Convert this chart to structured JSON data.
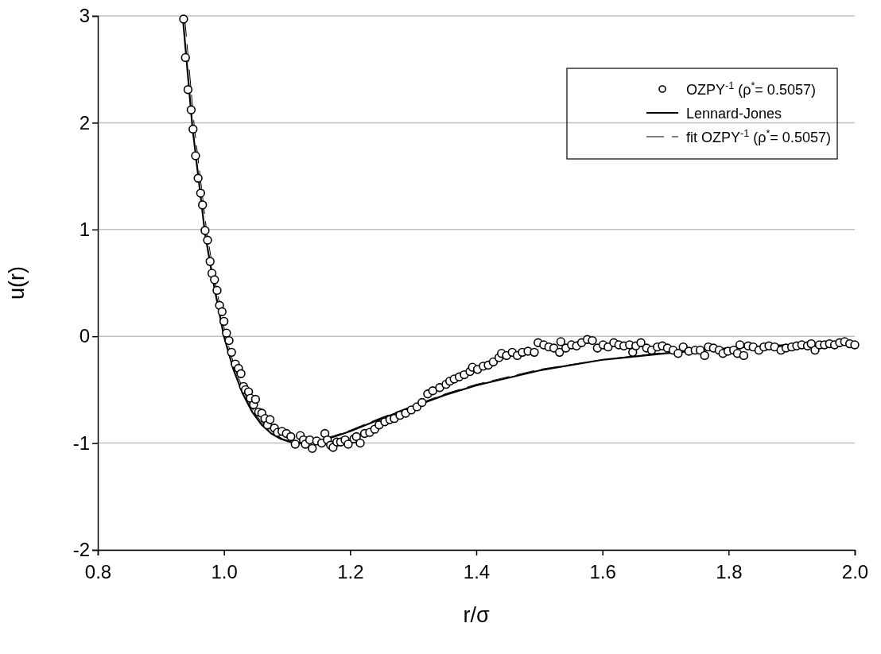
{
  "chart_data": {
    "type": "scatter",
    "xlabel": "r/σ",
    "ylabel": "u(r)",
    "xlim": [
      0.8,
      2.0
    ],
    "ylim": [
      -2,
      3
    ],
    "xticks": [
      0.8,
      {
        "value": 1,
        "label": "1.0"
      },
      1.2,
      1.4,
      1.6,
      1.8,
      {
        "value": 2,
        "label": "2.0"
      }
    ],
    "yticks": [
      -2,
      -1,
      0,
      1,
      2,
      3
    ],
    "grid": "y",
    "legend": "top right",
    "series": [
      {
        "name": "OZPY$^{-1}$ (ρ$^{*}$= 0.5057)",
        "marker": "circle",
        "color": "#000000",
        "x": [
          0.936,
          0.939,
          0.943,
          0.948,
          0.951,
          0.955,
          0.959,
          0.963,
          0.966,
          0.97,
          0.974,
          0.978,
          0.981,
          0.985,
          0.989,
          0.993,
          0.997,
          1.0,
          1.004,
          1.008,
          1.012,
          1.018,
          1.023,
          1.027,
          1.031,
          1.034,
          1.039,
          1.042,
          1.047,
          1.05,
          1.055,
          1.06,
          1.065,
          1.069,
          1.073,
          1.08,
          1.085,
          1.092,
          1.099,
          1.106,
          1.113,
          1.121,
          1.126,
          1.129,
          1.136,
          1.14,
          1.147,
          1.155,
          1.16,
          1.164,
          1.169,
          1.173,
          1.179,
          1.185,
          1.192,
          1.197,
          1.206,
          1.21,
          1.216,
          1.223,
          1.231,
          1.239,
          1.246,
          1.255,
          1.263,
          1.27,
          1.279,
          1.288,
          1.297,
          1.306,
          1.314,
          1.323,
          1.331,
          1.342,
          1.352,
          1.358,
          1.365,
          1.373,
          1.381,
          1.39,
          1.394,
          1.402,
          1.411,
          1.419,
          1.427,
          1.436,
          1.44,
          1.448,
          1.457,
          1.465,
          1.473,
          1.482,
          1.492,
          1.498,
          1.507,
          1.515,
          1.523,
          1.532,
          1.534,
          1.542,
          1.551,
          1.559,
          1.567,
          1.576,
          1.584,
          1.592,
          1.601,
          1.609,
          1.618,
          1.626,
          1.634,
          1.643,
          1.648,
          1.653,
          1.661,
          1.67,
          1.678,
          1.687,
          1.695,
          1.703,
          1.712,
          1.72,
          1.728,
          1.737,
          1.747,
          1.755,
          1.762,
          1.768,
          1.776,
          1.785,
          1.791,
          1.799,
          1.808,
          1.814,
          1.818,
          1.824,
          1.831,
          1.839,
          1.848,
          1.856,
          1.864,
          1.873,
          1.883,
          1.891,
          1.9,
          1.908,
          1.916,
          1.925,
          1.931,
          1.937,
          1.944,
          1.952,
          1.96,
          1.968,
          1.976,
          1.984,
          1.992,
          2.0
        ],
        "values": [
          2.97,
          2.61,
          2.31,
          2.12,
          1.94,
          1.69,
          1.48,
          1.34,
          1.23,
          0.99,
          0.9,
          0.7,
          0.59,
          0.53,
          0.43,
          0.29,
          0.23,
          0.14,
          0.03,
          -0.04,
          -0.15,
          -0.26,
          -0.3,
          -0.35,
          -0.47,
          -0.5,
          -0.52,
          -0.58,
          -0.64,
          -0.59,
          -0.71,
          -0.72,
          -0.77,
          -0.83,
          -0.78,
          -0.86,
          -0.9,
          -0.89,
          -0.91,
          -0.94,
          -1.01,
          -0.93,
          -0.97,
          -1.01,
          -0.97,
          -1.05,
          -0.98,
          -1.0,
          -0.91,
          -0.97,
          -1.02,
          -1.04,
          -0.99,
          -0.99,
          -0.97,
          -1.01,
          -0.96,
          -0.94,
          -1.0,
          -0.91,
          -0.9,
          -0.87,
          -0.83,
          -0.8,
          -0.78,
          -0.77,
          -0.74,
          -0.72,
          -0.69,
          -0.66,
          -0.62,
          -0.54,
          -0.51,
          -0.48,
          -0.45,
          -0.42,
          -0.4,
          -0.38,
          -0.36,
          -0.33,
          -0.29,
          -0.31,
          -0.28,
          -0.27,
          -0.24,
          -0.2,
          -0.16,
          -0.18,
          -0.15,
          -0.18,
          -0.15,
          -0.14,
          -0.15,
          -0.06,
          -0.08,
          -0.1,
          -0.11,
          -0.15,
          -0.05,
          -0.11,
          -0.08,
          -0.09,
          -0.06,
          -0.03,
          -0.04,
          -0.11,
          -0.08,
          -0.1,
          -0.06,
          -0.08,
          -0.09,
          -0.08,
          -0.15,
          -0.09,
          -0.06,
          -0.11,
          -0.13,
          -0.1,
          -0.09,
          -0.11,
          -0.13,
          -0.16,
          -0.1,
          -0.14,
          -0.13,
          -0.13,
          -0.18,
          -0.1,
          -0.11,
          -0.13,
          -0.16,
          -0.14,
          -0.13,
          -0.16,
          -0.08,
          -0.18,
          -0.09,
          -0.1,
          -0.13,
          -0.1,
          -0.09,
          -0.1,
          -0.13,
          -0.11,
          -0.1,
          -0.09,
          -0.08,
          -0.09,
          -0.07,
          -0.13,
          -0.08,
          -0.08,
          -0.07,
          -0.08,
          -0.06,
          -0.05,
          -0.07,
          -0.08
        ]
      },
      {
        "name": "Lennard-Jones",
        "type": "line",
        "marker": "none",
        "line_style": "solid",
        "color": "#000000",
        "x": [
          0.935,
          0.95,
          0.97,
          0.985,
          1.0,
          1.015,
          1.03,
          1.045,
          1.06,
          1.075,
          1.09,
          1.105,
          1.122,
          1.15,
          1.175,
          1.2,
          1.25,
          1.3,
          1.35,
          1.4,
          1.5,
          1.6,
          1.7,
          1.8,
          1.9,
          2.0
        ],
        "values": [
          2.97,
          1.96,
          0.96,
          0.45,
          0,
          -0.31,
          -0.54,
          -0.71,
          -0.83,
          -0.91,
          -0.96,
          -0.99,
          -1.0,
          -0.98,
          -0.94,
          -0.89,
          -0.77,
          -0.66,
          -0.55,
          -0.46,
          -0.32,
          -0.22,
          -0.16,
          -0.11,
          -0.08,
          -0.06
        ]
      },
      {
        "name": "fit OZPY$^{-1}$ (ρ$^{*}$= 0.5057)",
        "type": "line",
        "marker": "none",
        "line_style": "dashed",
        "color": "#000000",
        "x": [
          0.938,
          0.953,
          0.973,
          0.988,
          1.003,
          1.018,
          1.033,
          1.048,
          1.063,
          1.078,
          1.093,
          1.108,
          1.125,
          1.15,
          1.175,
          1.2,
          1.25,
          1.3,
          1.35,
          1.4,
          1.5,
          1.6,
          1.7,
          1.8,
          1.9,
          2.0
        ],
        "values": [
          2.97,
          1.96,
          0.96,
          0.45,
          0,
          -0.31,
          -0.54,
          -0.71,
          -0.83,
          -0.91,
          -0.96,
          -0.99,
          -1.0,
          -0.97,
          -0.93,
          -0.88,
          -0.76,
          -0.65,
          -0.54,
          -0.45,
          -0.31,
          -0.22,
          -0.15,
          -0.11,
          -0.08,
          -0.06
        ]
      }
    ]
  }
}
